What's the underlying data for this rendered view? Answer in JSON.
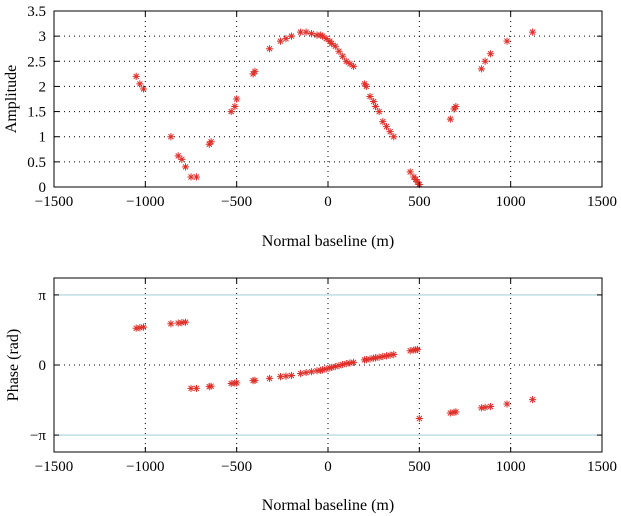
{
  "chart_data": [
    {
      "type": "scatter",
      "xlabel": "Normal baseline (m)",
      "ylabel": "Amplitude",
      "xlim": [
        -1500,
        1500
      ],
      "ylim": [
        0,
        3.5
      ],
      "xticks": [
        -1500,
        -1000,
        -500,
        0,
        500,
        1000,
        1500
      ],
      "xtick_labels": [
        "−1500",
        "−1000",
        "−500",
        "0",
        "500",
        "1000",
        "1500"
      ],
      "yticks": [
        0,
        0.5,
        1,
        1.5,
        2,
        2.5,
        3,
        3.5
      ],
      "ytick_labels": [
        "0",
        "0.5",
        "1",
        "1.5",
        "2",
        "2.5",
        "3",
        "3.5"
      ],
      "grid": true,
      "marker": "asterisk",
      "marker_color": "#e0302a",
      "x": [
        -1050,
        -1030,
        -1010,
        -860,
        -820,
        -800,
        -780,
        -750,
        -720,
        -650,
        -640,
        -530,
        -510,
        -500,
        -410,
        -400,
        -320,
        -260,
        -230,
        -200,
        -150,
        -120,
        -90,
        -60,
        -40,
        -30,
        -10,
        10,
        20,
        40,
        60,
        80,
        100,
        120,
        140,
        200,
        210,
        230,
        250,
        260,
        280,
        300,
        320,
        340,
        360,
        450,
        470,
        480,
        490,
        500,
        670,
        690,
        700,
        840,
        860,
        890,
        980,
        1120
      ],
      "y": [
        2.2,
        2.05,
        1.95,
        1.0,
        0.62,
        0.55,
        0.4,
        0.2,
        0.2,
        0.85,
        0.9,
        1.5,
        1.6,
        1.75,
        2.25,
        2.3,
        2.75,
        2.9,
        2.95,
        3.0,
        3.08,
        3.08,
        3.05,
        3.02,
        3.02,
        3.0,
        2.95,
        2.9,
        2.85,
        2.8,
        2.7,
        2.6,
        2.5,
        2.45,
        2.4,
        2.05,
        2.0,
        1.8,
        1.7,
        1.6,
        1.5,
        1.3,
        1.2,
        1.1,
        1.0,
        0.3,
        0.2,
        0.15,
        0.1,
        0.05,
        1.35,
        1.55,
        1.6,
        2.35,
        2.5,
        2.65,
        2.9,
        3.08
      ]
    },
    {
      "type": "scatter",
      "xlabel": "Normal baseline (m)",
      "ylabel": "Phase (rad)",
      "xlim": [
        -1500,
        1500
      ],
      "ylim": [
        -3.9,
        3.9
      ],
      "xticks": [
        -1500,
        -1000,
        -500,
        0,
        500,
        1000,
        1500
      ],
      "xtick_labels": [
        "−1500",
        "−1000",
        "−500",
        "0",
        "500",
        "1000",
        "1500"
      ],
      "yticks": [
        -3.14159,
        0,
        3.14159
      ],
      "ytick_labels": [
        "−π",
        "0",
        "π"
      ],
      "reference_lines": [
        3.14159,
        -3.14159
      ],
      "grid": true,
      "marker": "asterisk",
      "marker_color": "#e0302a",
      "x": [
        -1050,
        -1030,
        -1010,
        -860,
        -820,
        -800,
        -780,
        -750,
        -720,
        -650,
        -640,
        -530,
        -510,
        -500,
        -410,
        -400,
        -320,
        -260,
        -230,
        -200,
        -150,
        -120,
        -90,
        -60,
        -40,
        -30,
        -10,
        10,
        20,
        40,
        60,
        80,
        100,
        120,
        140,
        200,
        210,
        230,
        250,
        260,
        280,
        300,
        320,
        340,
        360,
        450,
        470,
        480,
        490,
        500,
        670,
        690,
        700,
        840,
        860,
        890,
        980,
        1120
      ],
      "y": [
        1.65,
        1.67,
        1.7,
        1.85,
        1.88,
        1.9,
        1.92,
        -1.05,
        -1.05,
        -0.97,
        -0.95,
        -0.83,
        -0.81,
        -0.8,
        -0.7,
        -0.69,
        -0.6,
        -0.52,
        -0.5,
        -0.47,
        -0.38,
        -0.34,
        -0.3,
        -0.26,
        -0.24,
        -0.22,
        -0.18,
        -0.13,
        -0.11,
        -0.07,
        -0.03,
        0.02,
        0.06,
        0.09,
        0.12,
        0.23,
        0.24,
        0.27,
        0.31,
        0.32,
        0.35,
        0.38,
        0.41,
        0.44,
        0.47,
        0.64,
        0.67,
        0.68,
        0.7,
        -2.4,
        -2.15,
        -2.12,
        -2.1,
        -1.92,
        -1.9,
        -1.86,
        -1.75,
        -1.55
      ]
    }
  ]
}
